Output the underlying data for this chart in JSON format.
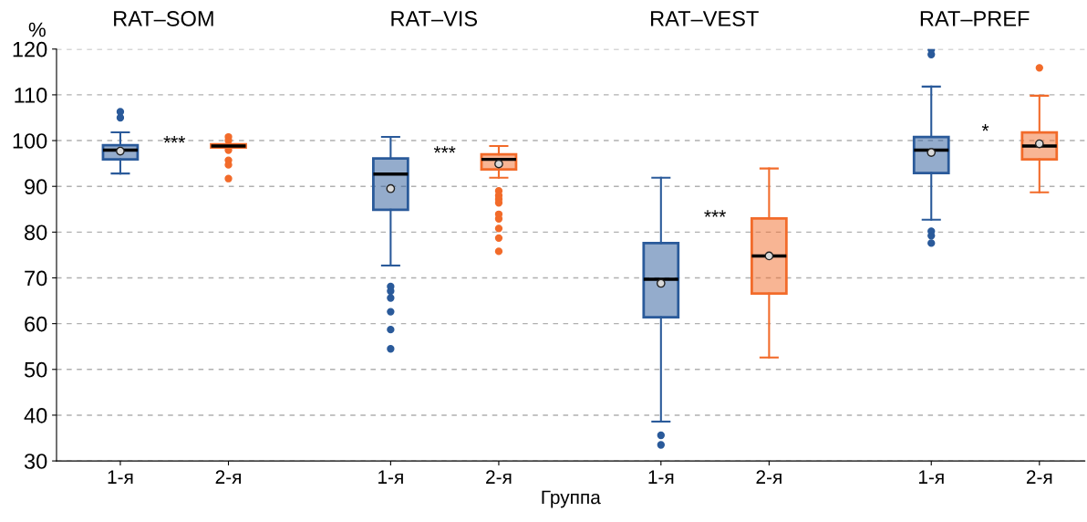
{
  "chart_data": {
    "type": "box",
    "ylabel": "%",
    "xlabel": "Группа",
    "categories": [
      "1-я",
      "2-я",
      "1-я",
      "2-я",
      "1-я",
      "2-я",
      "1-я",
      "2-я"
    ],
    "series": [
      {
        "color": "#2a5a9a",
        "boxes": [
          {
            "low": 92.8,
            "q1": 95.9,
            "median": 97.9,
            "q3": 99.0,
            "high": 101.8,
            "mean": 97.7,
            "outliers": [
              106.3,
              105.0
            ]
          },
          null,
          {
            "low": 72.7,
            "q1": 84.9,
            "median": 92.7,
            "q3": 96.1,
            "high": 100.8,
            "mean": 89.5,
            "outliers": [
              68.1,
              67.1,
              65.6,
              62.6,
              58.7,
              54.5
            ]
          },
          null,
          {
            "low": 38.6,
            "q1": 61.4,
            "median": 69.7,
            "q3": 77.6,
            "high": 91.9,
            "mean": 68.8,
            "outliers": [
              35.6,
              33.5
            ]
          },
          null,
          {
            "low": 82.7,
            "q1": 92.9,
            "median": 97.9,
            "q3": 100.8,
            "high": 111.8,
            "mean": 97.4,
            "outliers": [
              119.9,
              118.8,
              80.2,
              79.2,
              77.6
            ]
          },
          null
        ]
      },
      {
        "color": "#f26b2a",
        "boxes": [
          null,
          {
            "low": 98.5,
            "q1": 98.5,
            "median": 98.8,
            "q3": 99.2,
            "high": 99.2,
            "outliers": [
              100.8,
              100.0,
              97.9,
              95.7,
              94.7,
              91.7
            ]
          },
          null,
          {
            "low": 91.9,
            "q1": 93.7,
            "median": 95.9,
            "q3": 97.0,
            "high": 98.8,
            "mean": 94.9,
            "outliers": [
              89.0,
              88.0,
              87.2,
              86.4,
              83.9,
              82.9,
              80.8,
              78.7,
              75.8
            ]
          },
          null,
          {
            "low": 52.6,
            "q1": 66.6,
            "median": 74.8,
            "q3": 83.0,
            "high": 93.9,
            "mean": 74.8
          },
          null,
          {
            "low": 88.7,
            "q1": 95.9,
            "median": 98.8,
            "q3": 101.8,
            "high": 109.8,
            "mean": 99.3,
            "outliers": [
              115.9
            ]
          }
        ]
      }
    ],
    "ylim": [
      30,
      120
    ],
    "yticks": [
      30,
      40,
      50,
      60,
      70,
      80,
      90,
      100,
      110,
      120
    ],
    "grid": "y",
    "legend": false,
    "annotations": [
      "RAT–SOM",
      "RAT–VIS",
      "RAT–VEST",
      "RAT–PREF",
      "***",
      "***",
      "***",
      "*"
    ]
  }
}
